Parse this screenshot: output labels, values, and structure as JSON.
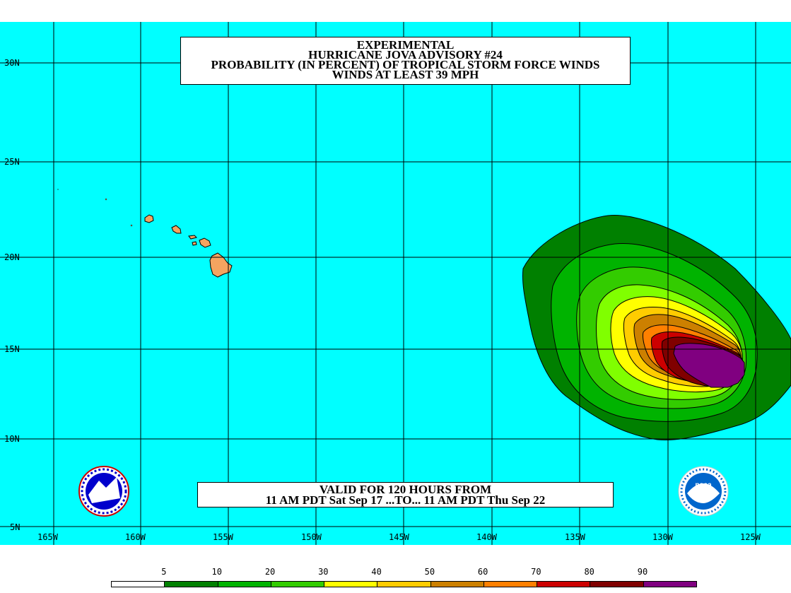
{
  "title": {
    "line1": "EXPERIMENTAL",
    "line2": "HURRICANE JOVA ADVISORY #24",
    "line3": "PROBABILITY (IN PERCENT) OF TROPICAL STORM FORCE WINDS",
    "line4": "WINDS AT LEAST 39 MPH"
  },
  "valid": {
    "line1": "VALID FOR 120 HOURS FROM",
    "line2": "11 AM PDT Sat Sep 17 ...TO... 11 AM PDT Thu Sep 22"
  },
  "latitude_labels": [
    "30N",
    "25N",
    "20N",
    "15N",
    "10N",
    "5N"
  ],
  "longitude_labels": [
    "165W",
    "160W",
    "155W",
    "150W",
    "145W",
    "140W",
    "135W",
    "130W",
    "125W"
  ],
  "colors": {
    "ocean": "#00ffff",
    "land": "#f4a460",
    "grid": "#000000"
  },
  "legend": {
    "labels": [
      "5",
      "10",
      "20",
      "30",
      "40",
      "50",
      "60",
      "70",
      "80",
      "90"
    ],
    "colors": [
      "#ffffff",
      "#008000",
      "#00b300",
      "#33cc00",
      "#80ff00",
      "#ffff00",
      "#ffcc00",
      "#cc8000",
      "#ff8000",
      "#cc0000",
      "#800000",
      "#800080"
    ]
  },
  "probability_contours": [
    "5",
    "10",
    "20",
    "30",
    "40",
    "50",
    "60",
    "70",
    "80",
    "90"
  ],
  "logos": {
    "left": "nws-logo",
    "right": "noaa-logo",
    "noaa_text": "noaa"
  }
}
